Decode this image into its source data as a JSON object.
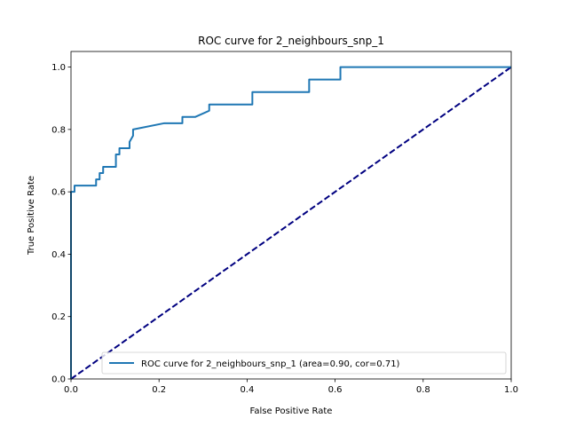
{
  "chart_data": {
    "type": "line",
    "title": "ROC curve for 2_neighbours_snp_1",
    "xlabel": "False Positive Rate",
    "ylabel": "True Positive Rate",
    "xlim": [
      0.0,
      1.0
    ],
    "ylim": [
      0.0,
      1.05
    ],
    "x_ticks": [
      "0.0",
      "0.2",
      "0.4",
      "0.6",
      "0.8",
      "1.0"
    ],
    "y_ticks": [
      "0.0",
      "0.2",
      "0.4",
      "0.6",
      "0.8",
      "1.0"
    ],
    "grid": false,
    "legend_position": "lower-right",
    "series": [
      {
        "name": "ROC curve for 2_neighbours_snp_1 (area=0.90, cor=0.71)",
        "color": "#1f77b4",
        "style": "solid",
        "x": [
          0.0,
          0.0,
          0.008,
          0.008,
          0.057,
          0.057,
          0.065,
          0.065,
          0.073,
          0.073,
          0.102,
          0.102,
          0.11,
          0.11,
          0.133,
          0.133,
          0.141,
          0.141,
          0.212,
          0.253,
          0.253,
          0.282,
          0.314,
          0.314,
          0.412,
          0.412,
          0.541,
          0.541,
          0.612,
          0.612,
          1.0
        ],
        "y": [
          0.0,
          0.6,
          0.6,
          0.62,
          0.62,
          0.64,
          0.64,
          0.66,
          0.66,
          0.68,
          0.68,
          0.72,
          0.72,
          0.74,
          0.74,
          0.76,
          0.78,
          0.8,
          0.82,
          0.82,
          0.84,
          0.84,
          0.86,
          0.88,
          0.88,
          0.92,
          0.92,
          0.96,
          0.96,
          1.0,
          1.0
        ]
      },
      {
        "color": "#000080",
        "style": "dashed",
        "x": [
          0.0,
          1.0
        ],
        "y": [
          0.0,
          1.0
        ]
      }
    ]
  }
}
